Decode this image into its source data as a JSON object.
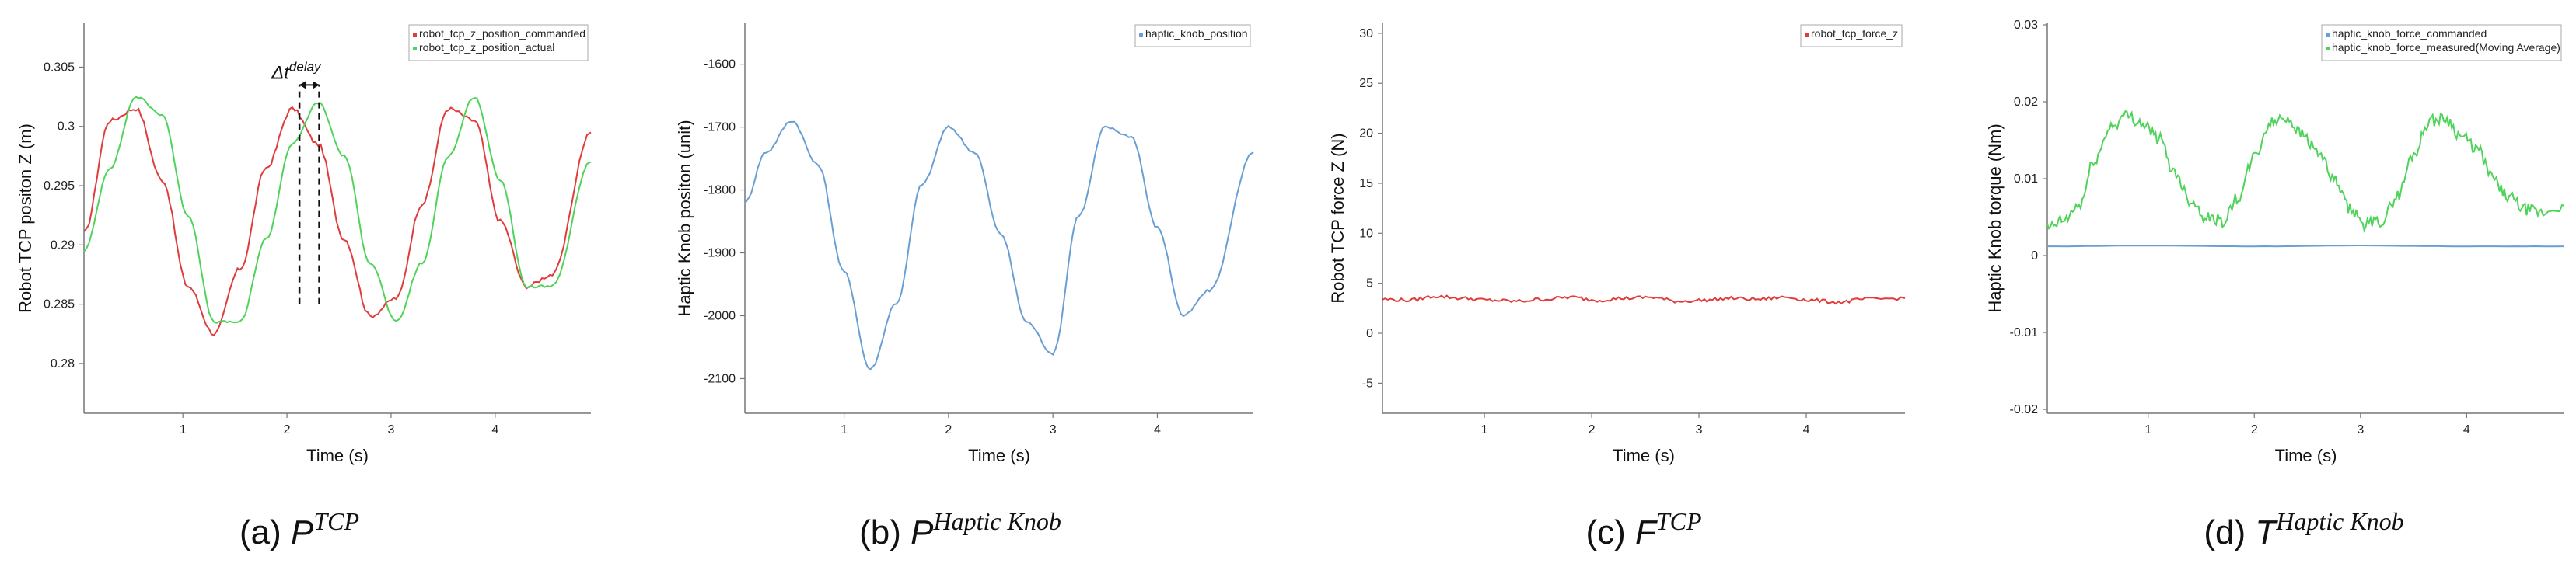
{
  "chart_data": [
    {
      "type": "line",
      "id": "a",
      "caption_prefix": "(a)",
      "caption_main": "P",
      "caption_sup": "TCP",
      "xlabel": "Time (s)",
      "ylabel": "Robot TCP positon Z (m)",
      "xlim": [
        0.05,
        4.92
      ],
      "ylim": [
        0.2758,
        0.3087
      ],
      "xticks": [
        1,
        2,
        3,
        4
      ],
      "yticks": [
        0.28,
        0.285,
        0.29,
        0.295,
        0.3,
        0.305
      ],
      "ytick_labels": [
        "0.28",
        "0.285",
        "0.29",
        "0.295",
        "0.3",
        "0.305"
      ],
      "legend_position": "top-right",
      "annotation": {
        "text_main": "Δt",
        "text_sup": "delay",
        "x1": 2.12,
        "x2": 2.31,
        "y_bottom": 0.285,
        "y_top": 0.3035
      },
      "series": [
        {
          "name": "robot_tcp_z_position_commanded",
          "color": "#e03c3c",
          "x": [
            0.05,
            0.3,
            0.55,
            0.8,
            1.05,
            1.3,
            1.55,
            1.8,
            2.05,
            2.3,
            2.55,
            2.8,
            3.05,
            3.3,
            3.55,
            3.8,
            4.05,
            4.3,
            4.55,
            4.92
          ],
          "y": [
            0.291,
            0.3005,
            0.3015,
            0.2955,
            0.2865,
            0.2825,
            0.288,
            0.2965,
            0.3015,
            0.2985,
            0.2905,
            0.284,
            0.2855,
            0.2935,
            0.3015,
            0.3005,
            0.292,
            0.2865,
            0.2875,
            0.2995
          ]
        },
        {
          "name": "robot_tcp_z_position_actual",
          "color": "#4fd35a",
          "x": [
            0.05,
            0.3,
            0.55,
            0.8,
            1.05,
            1.3,
            1.55,
            1.8,
            2.05,
            2.3,
            2.55,
            2.8,
            3.05,
            3.3,
            3.55,
            3.8,
            4.05,
            4.3,
            4.55,
            4.92
          ],
          "y": [
            0.2895,
            0.2965,
            0.3025,
            0.301,
            0.2925,
            0.2835,
            0.2835,
            0.2905,
            0.2985,
            0.302,
            0.2975,
            0.2885,
            0.2835,
            0.2885,
            0.2975,
            0.3025,
            0.2955,
            0.2865,
            0.2865,
            0.297
          ]
        }
      ]
    },
    {
      "type": "line",
      "id": "b",
      "caption_prefix": "(b)",
      "caption_main": "P",
      "caption_sup": "Haptic Knob",
      "xlabel": "Time (s)",
      "ylabel": "Haptic Knob positon (unit)",
      "xlim": [
        0.05,
        4.92
      ],
      "ylim": [
        -2155,
        -1535
      ],
      "xticks": [
        1,
        2,
        3,
        4
      ],
      "yticks": [
        -2100,
        -2000,
        -1900,
        -1800,
        -1700,
        -1600
      ],
      "ytick_labels": [
        "-2100",
        "-2000",
        "-1900",
        "-1800",
        "-1700",
        "-1600"
      ],
      "legend_position": "top-right",
      "series": [
        {
          "name": "haptic_knob_position",
          "color": "#6a9fd4",
          "x": [
            0.05,
            0.25,
            0.5,
            0.75,
            1.0,
            1.25,
            1.5,
            1.75,
            2.0,
            2.25,
            2.5,
            2.75,
            3.0,
            3.25,
            3.5,
            3.75,
            4.0,
            4.25,
            4.5,
            4.92
          ],
          "y": [
            -1820,
            -1740,
            -1690,
            -1760,
            -1930,
            -2085,
            -1980,
            -1790,
            -1700,
            -1740,
            -1870,
            -2010,
            -2060,
            -1840,
            -1700,
            -1715,
            -1860,
            -2000,
            -1960,
            -1740
          ]
        }
      ]
    },
    {
      "type": "line",
      "id": "c",
      "caption_prefix": "(c)",
      "caption_main": "F",
      "caption_sup": "TCP",
      "xlabel": "Time (s)",
      "ylabel": "Robot TCP force Z (N)",
      "xlim": [
        0.05,
        4.92
      ],
      "ylim": [
        -8,
        31
      ],
      "xticks": [
        1,
        2,
        3,
        4
      ],
      "yticks": [
        -5,
        0,
        5,
        10,
        15,
        20,
        25,
        30
      ],
      "ytick_labels": [
        "-5",
        "0",
        "5",
        "10",
        "15",
        "20",
        "25",
        "30"
      ],
      "legend_position": "top-right",
      "series": [
        {
          "name": "robot_tcp_force_z",
          "color": "#e03c3c",
          "x": [
            0.05,
            0.3,
            0.55,
            0.8,
            1.05,
            1.3,
            1.55,
            1.8,
            2.05,
            2.3,
            2.55,
            2.8,
            3.05,
            3.3,
            3.55,
            3.8,
            4.05,
            4.3,
            4.55,
            4.92
          ],
          "y": [
            3.4,
            3.3,
            3.7,
            3.5,
            3.3,
            3.2,
            3.4,
            3.6,
            3.3,
            3.5,
            3.6,
            3.2,
            3.3,
            3.5,
            3.4,
            3.6,
            3.3,
            3.1,
            3.4,
            3.5
          ]
        }
      ]
    },
    {
      "type": "line",
      "id": "d",
      "caption_prefix": "(d)",
      "caption_main": "T",
      "caption_sup": "Haptic Knob",
      "xlabel": "Time (s)",
      "ylabel": "Haptic Knob torque (Nm)",
      "xlim": [
        0.05,
        4.92
      ],
      "ylim": [
        -0.0205,
        0.0302
      ],
      "xticks": [
        1,
        2,
        3,
        4
      ],
      "yticks": [
        -0.02,
        -0.01,
        0,
        0.01,
        0.02,
        0.03
      ],
      "ytick_labels": [
        "-0.02",
        "-0.01",
        "0",
        "0.01",
        "0.02",
        "0.03"
      ],
      "legend_position": "top-right",
      "series": [
        {
          "name": "haptic_knob_force_commanded",
          "color": "#6a9fd4",
          "x": [
            0.05,
            1.0,
            2.0,
            3.0,
            4.0,
            4.92
          ],
          "y": [
            0.0012,
            0.0013,
            0.0012,
            0.0013,
            0.0012,
            0.0012
          ]
        },
        {
          "name": "haptic_knob_force_measured(Moving Average)",
          "color": "#4fd35a",
          "x": [
            0.05,
            0.2,
            0.35,
            0.5,
            0.65,
            0.8,
            0.95,
            1.1,
            1.25,
            1.4,
            1.55,
            1.7,
            1.85,
            2.0,
            2.15,
            2.3,
            2.45,
            2.6,
            2.75,
            2.9,
            3.05,
            3.2,
            3.35,
            3.5,
            3.65,
            3.8,
            3.95,
            4.1,
            4.25,
            4.4,
            4.55,
            4.7,
            4.92
          ],
          "y": [
            0.0035,
            0.0045,
            0.0065,
            0.0125,
            0.0168,
            0.0182,
            0.0172,
            0.0152,
            0.0108,
            0.0072,
            0.005,
            0.0045,
            0.0075,
            0.0128,
            0.0172,
            0.018,
            0.0158,
            0.0135,
            0.0098,
            0.006,
            0.004,
            0.0045,
            0.0078,
            0.0132,
            0.0175,
            0.0178,
            0.0155,
            0.0138,
            0.01,
            0.0075,
            0.006,
            0.0055,
            0.0065
          ]
        }
      ]
    }
  ]
}
